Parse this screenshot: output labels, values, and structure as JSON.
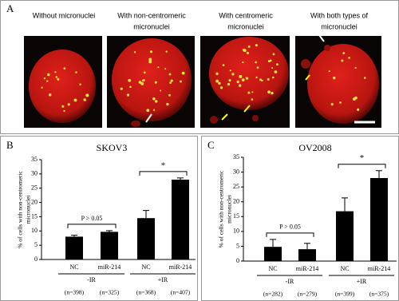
{
  "panel_a": {
    "label": "A",
    "captions": [
      [
        "Without micronuclei"
      ],
      [
        "With non-centromeric",
        "micronuclei"
      ],
      [
        "With centromeric",
        "micronuclei"
      ],
      [
        "With both types of",
        "micronuclei"
      ]
    ]
  },
  "chart_data": [
    {
      "type": "bar",
      "label": "B",
      "title": "SKOV3",
      "ylabel": [
        "% of cells with non-centromeric",
        "micronuclei"
      ],
      "categories": [
        "NC",
        "miR-214",
        "NC",
        "miR-214"
      ],
      "values": [
        8,
        9.7,
        14.5,
        28
      ],
      "errors": [
        0.5,
        0.4,
        2.7,
        0.6
      ],
      "groups": [
        "-IR",
        "+IR"
      ],
      "n_labels": [
        "(n=398)",
        "(n=325)",
        "(n=368)",
        "(n=407)"
      ],
      "annotations": [
        "P > 0.05",
        "*"
      ],
      "color": "#000000",
      "ylim": [
        0,
        35
      ],
      "yticks": [
        0,
        5,
        10,
        15,
        20,
        25,
        30,
        35
      ]
    },
    {
      "type": "bar",
      "label": "C",
      "title": "OV2008",
      "ylabel": [
        "% of cells with non-centromeric",
        "micronuclei"
      ],
      "categories": [
        "NC",
        "miR-214",
        "NC",
        "miR-214"
      ],
      "values": [
        4.8,
        4,
        16.8,
        28
      ],
      "errors": [
        2.5,
        2,
        4.5,
        2.5
      ],
      "groups": [
        "-IR",
        "+IR"
      ],
      "n_labels": [
        "(n=282)",
        "(n=279)",
        "(n=399)",
        "(n=375)"
      ],
      "annotations": [
        "P > 0.05",
        "*"
      ],
      "color": "#000000",
      "ylim": [
        0,
        35
      ],
      "yticks": [
        0,
        5,
        10,
        15,
        20,
        25,
        30,
        35
      ]
    }
  ]
}
